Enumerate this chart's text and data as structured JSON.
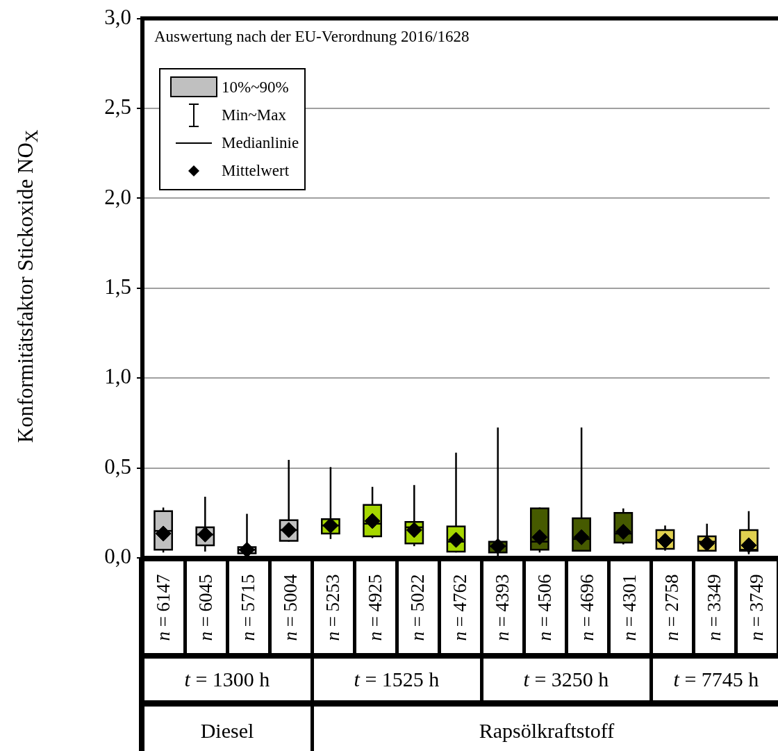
{
  "chart_data": {
    "type": "box",
    "ylabel": "Konformitätsfaktor Stickoxide NO$_{X}$",
    "categories": [
      "n = 6147",
      "n = 6045",
      "n = 5715",
      "n = 5004",
      "n = 5253",
      "n = 4925",
      "n = 5022",
      "n = 4762",
      "n = 4393",
      "n = 4506",
      "n = 4696",
      "n = 4301",
      "n = 2758",
      "n = 3349",
      "n = 3749"
    ],
    "colors": [
      "#c0c0c0",
      "#c0c0c0",
      "#c0c0c0",
      "#c0c0c0",
      "#a6d700",
      "#a6d700",
      "#a6d700",
      "#a6d700",
      "#465a00",
      "#465a00",
      "#465a00",
      "#465a00",
      "#e0d050",
      "#e0d050",
      "#e0d050"
    ],
    "boxes": [
      {
        "low": 0.03,
        "q1": 0.045,
        "median": 0.15,
        "q3": 0.26,
        "high": 0.28,
        "mean": 0.135
      },
      {
        "low": 0.035,
        "q1": 0.07,
        "median": 0.13,
        "q3": 0.17,
        "high": 0.34,
        "mean": 0.13
      },
      {
        "low": 0.02,
        "q1": 0.025,
        "median": 0.045,
        "q3": 0.06,
        "high": 0.245,
        "mean": 0.045
      },
      {
        "low": 0.09,
        "q1": 0.095,
        "median": 0.155,
        "q3": 0.21,
        "high": 0.545,
        "mean": 0.155
      },
      {
        "low": 0.105,
        "q1": 0.135,
        "median": 0.18,
        "q3": 0.215,
        "high": 0.505,
        "mean": 0.18
      },
      {
        "low": 0.11,
        "q1": 0.12,
        "median": 0.19,
        "q3": 0.295,
        "high": 0.395,
        "mean": 0.205
      },
      {
        "low": 0.065,
        "q1": 0.08,
        "median": 0.17,
        "q3": 0.2,
        "high": 0.405,
        "mean": 0.155
      },
      {
        "low": 0.03,
        "q1": 0.035,
        "median": 0.09,
        "q3": 0.175,
        "high": 0.585,
        "mean": 0.1
      },
      {
        "low": 0.01,
        "q1": 0.03,
        "median": 0.065,
        "q3": 0.09,
        "high": 0.725,
        "mean": 0.065
      },
      {
        "low": 0.03,
        "q1": 0.045,
        "median": 0.09,
        "q3": 0.275,
        "high": 0.28,
        "mean": 0.115
      },
      {
        "low": 0.035,
        "q1": 0.04,
        "median": 0.105,
        "q3": 0.22,
        "high": 0.725,
        "mean": 0.115
      },
      {
        "low": 0.075,
        "q1": 0.085,
        "median": 0.135,
        "q3": 0.25,
        "high": 0.275,
        "mean": 0.145
      },
      {
        "low": 0.04,
        "q1": 0.05,
        "median": 0.1,
        "q3": 0.155,
        "high": 0.18,
        "mean": 0.095
      },
      {
        "low": 0.035,
        "q1": 0.04,
        "median": 0.09,
        "q3": 0.12,
        "high": 0.19,
        "mean": 0.08
      },
      {
        "low": 0.02,
        "q1": 0.04,
        "median": 0.045,
        "q3": 0.155,
        "high": 0.26,
        "mean": 0.07
      }
    ],
    "ylim": [
      0,
      3
    ],
    "yticks": [
      {
        "value": 0,
        "label": "0,0"
      },
      {
        "value": 0.5,
        "label": "0,5"
      },
      {
        "value": 1,
        "label": "1,0"
      },
      {
        "value": 1.5,
        "label": "1,5"
      },
      {
        "value": 2,
        "label": "2,0"
      },
      {
        "value": 2.5,
        "label": "2,5"
      },
      {
        "value": 3,
        "label": "3,0"
      }
    ],
    "grid": "y",
    "marker": "diamond",
    "annotations": [
      "Auswertung nach der EU-Verordnung 2016/1628",
      "10%~90%",
      "Min~Max",
      "Medianlinie",
      "Mittelwert",
      "t = 1300 h",
      "t = 1525 h",
      "t = 3250 h",
      "t = 7745 h",
      "Diesel",
      "Rapsölkraftstoff"
    ]
  }
}
